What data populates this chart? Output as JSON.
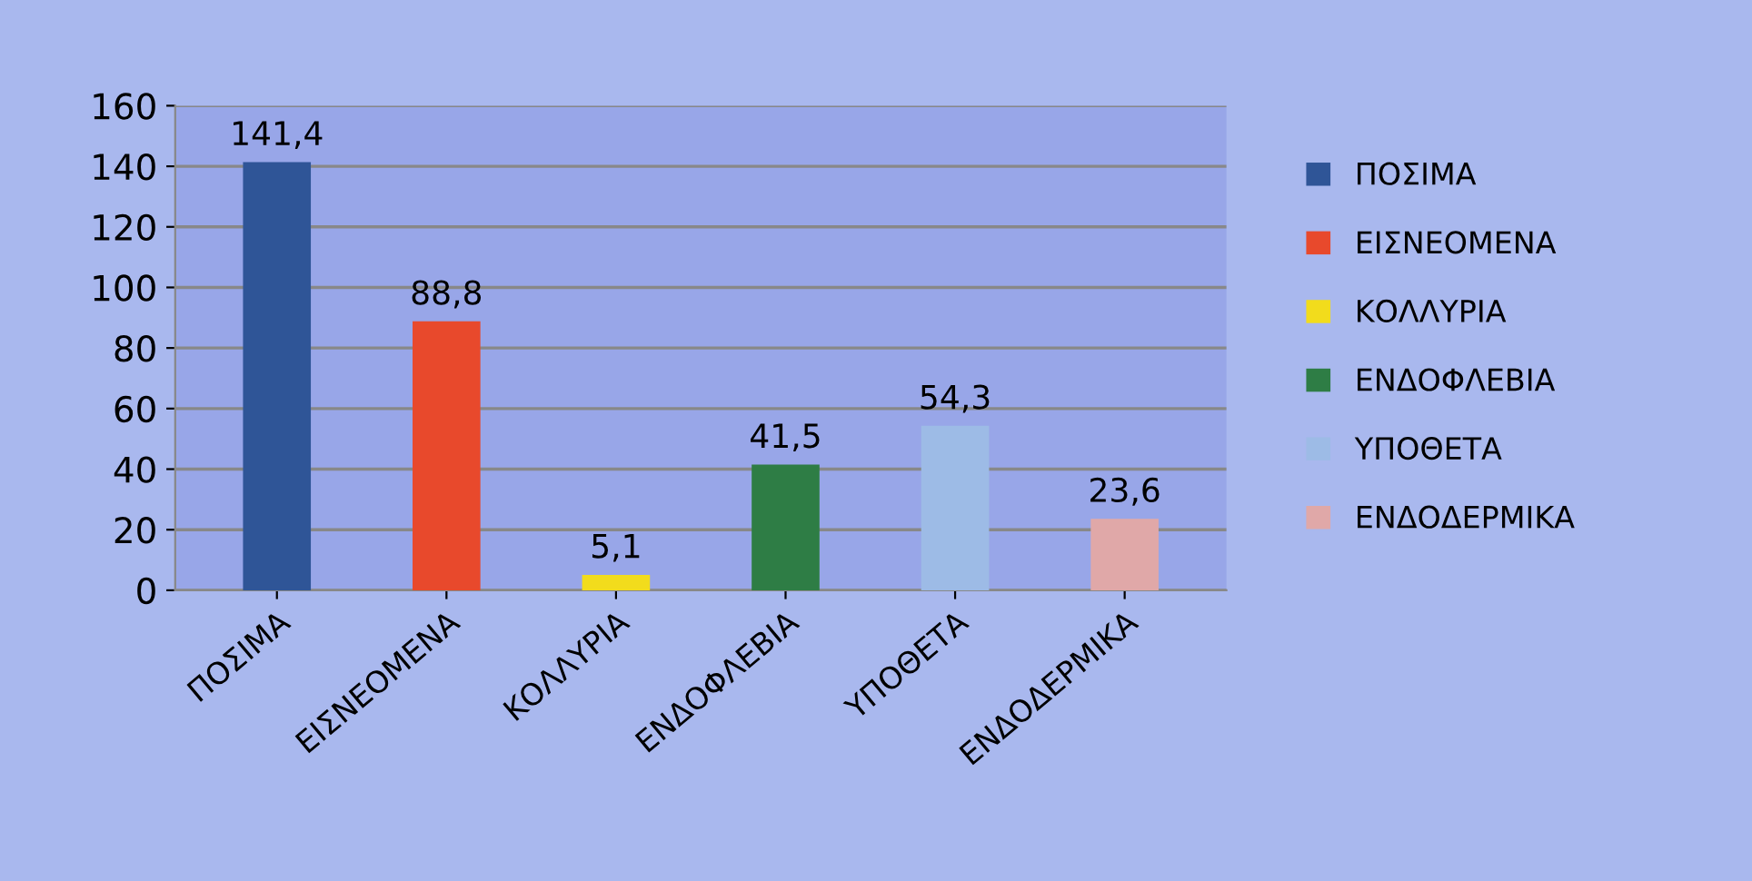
{
  "chart_data": {
    "type": "bar",
    "categories": [
      "ΠΟΣΙΜΑ",
      "ΕΙΣΝΕΟΜΕΝΑ",
      "ΚΟΛΛΥΡΙΑ",
      "ΕΝΔΟΦΛΕΒΙΑ",
      "ΥΠΟΘΕΤΑ",
      "ΕΝΔΟΔΕΡΜΙΚΑ"
    ],
    "series": [
      {
        "name": "ΠΟΣΙΜΑ",
        "color": "#2f5597",
        "values": [
          141.4,
          null,
          null,
          null,
          null,
          null
        ],
        "value_labels": [
          "141,4",
          null,
          null,
          null,
          null,
          null
        ]
      },
      {
        "name": "ΕΙΣΝΕΟΜΕΝΑ",
        "color": "#e8492c",
        "values": [
          null,
          88.8,
          null,
          null,
          null,
          null
        ],
        "value_labels": [
          null,
          "88,8",
          null,
          null,
          null,
          null
        ]
      },
      {
        "name": "ΚΟΛΛΥΡΙΑ",
        "color": "#f2dc1c",
        "values": [
          null,
          null,
          5.1,
          null,
          null,
          null
        ],
        "value_labels": [
          null,
          null,
          "5,1",
          null,
          null,
          null
        ]
      },
      {
        "name": "ΕΝΔΟΦΛΕΒΙΑ",
        "color": "#2e7d45",
        "values": [
          null,
          null,
          null,
          41.5,
          null,
          null
        ],
        "value_labels": [
          null,
          null,
          null,
          "41,5",
          null,
          null
        ]
      },
      {
        "name": "ΥΠΟΘΕΤΑ",
        "color": "#9dbbe6",
        "values": [
          null,
          null,
          null,
          null,
          54.3,
          null
        ],
        "value_labels": [
          null,
          null,
          null,
          null,
          "54,3",
          null
        ]
      },
      {
        "name": "ΕΝΔΟΔΕΡΜΙΚΑ",
        "color": "#e0a8a8",
        "values": [
          null,
          null,
          null,
          null,
          null,
          23.6
        ],
        "value_labels": [
          null,
          null,
          null,
          null,
          null,
          "23,6"
        ]
      }
    ],
    "ylim": [
      0,
      160
    ],
    "yticks": [
      0,
      20,
      40,
      60,
      80,
      100,
      120,
      140,
      160
    ],
    "grid": "y",
    "legend": "right"
  }
}
